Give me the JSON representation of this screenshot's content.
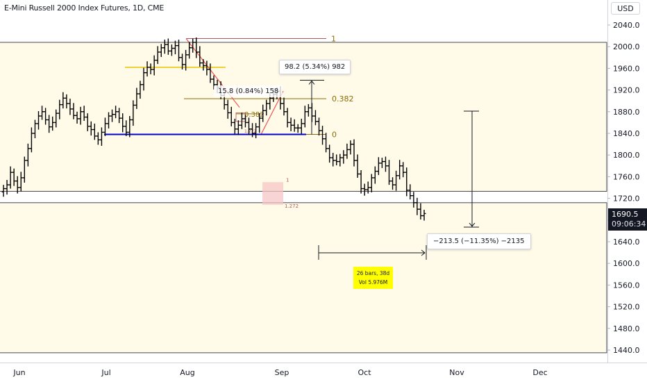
{
  "header": {
    "title": "E-Mini Russell 2000 Index Futures, 1D, CME",
    "currency": "USD"
  },
  "price_tag": {
    "price": "1690.5",
    "countdown": "09:06:34"
  },
  "annotations": {
    "rally_measure": "98.2 (5.34%) 982",
    "pullback_measure": "15.8 (0.84%) 158",
    "drop_measure": "−213.5 (−11.35%) −2135",
    "bars_info_line1": "26 bars, 38d",
    "bars_info_line2": "Vol 5.976M",
    "fib_upper_1": "1",
    "fib_upper_0382": "0.382",
    "fib_upper_0": "0",
    "fib_inner_0382": "0.382",
    "fib_inner_1272": "1.272",
    "fib_ext_1": "1",
    "fib_ext_1272": "1.272"
  },
  "colors": {
    "background": "#ffffff",
    "zone_fill": "#fffbe8",
    "zone_border": "#434651",
    "candles": "#000000",
    "support_line": "#0000cc",
    "fib_line": "#8a6d0a",
    "fib_yellow": "#e8c400",
    "fib_red_line": "#b2555b",
    "trend_line": "#ef5350",
    "ext_box": "#f7c5c5",
    "price_tag_bg": "#131722",
    "bars_box": "#ffff00"
  },
  "chart_data": {
    "type": "ohlc",
    "title": "E-Mini Russell 2000 Index Futures, 1D, CME",
    "y_axis": {
      "min": 1440,
      "max": 2040,
      "ticks": [
        2040.0,
        2000.0,
        1960.0,
        1920.0,
        1880.0,
        1840.0,
        1800.0,
        1760.0,
        1720.0,
        1680.0,
        1640.0,
        1600.0,
        1560.0,
        1520.0,
        1480.0,
        1440.0
      ],
      "tick_labels": [
        "2040.0",
        "2000.0",
        "1960.0",
        "1920.0",
        "1880.0",
        "1840.0",
        "1800.0",
        "1760.0",
        "1720.0",
        "1680.0",
        "1640.0",
        "1600.0",
        "1560.0",
        "1520.0",
        "1480.0",
        "1440.0"
      ],
      "position": "right"
    },
    "x_axis": {
      "labels": [
        "Jun",
        "Jul",
        "Aug",
        "Sep",
        "Oct",
        "Nov",
        "Dec"
      ]
    },
    "last_price": 1690.5,
    "zones": [
      {
        "name": "upper-zone",
        "top": 2008,
        "bottom": 1733
      },
      {
        "name": "lower-zone",
        "top": 1712,
        "bottom": 1435
      }
    ],
    "support_level": 1838,
    "fib_upper_level_1": 2015,
    "fib_upper_level_0382": 1904,
    "fib_upper_level_0": 1838,
    "rally_target": 1938,
    "drop_target_top": 1881,
    "drop_target_bottom": 1667,
    "closes": [
      1738,
      1745,
      1768,
      1752,
      1740,
      1758,
      1790,
      1812,
      1840,
      1858,
      1872,
      1880,
      1865,
      1852,
      1860,
      1877,
      1893,
      1905,
      1895,
      1885,
      1873,
      1867,
      1880,
      1870,
      1853,
      1847,
      1835,
      1828,
      1842,
      1858,
      1872,
      1875,
      1880,
      1868,
      1853,
      1842,
      1865,
      1892,
      1913,
      1930,
      1952,
      1962,
      1958,
      1975,
      1990,
      1998,
      2004,
      1992,
      1997,
      2002,
      1980,
      1967,
      1985,
      1998,
      2008,
      1990,
      1970,
      1965,
      1958,
      1940,
      1930,
      1925,
      1910,
      1893,
      1878,
      1860,
      1848,
      1855,
      1867,
      1860,
      1848,
      1840,
      1852,
      1868,
      1882,
      1895,
      1905,
      1912,
      1918,
      1895,
      1880,
      1860,
      1855,
      1850,
      1850,
      1858,
      1880,
      1887,
      1872,
      1862,
      1845,
      1830,
      1812,
      1795,
      1790,
      1788,
      1795,
      1800,
      1810,
      1820,
      1790,
      1765,
      1738,
      1736,
      1740,
      1758,
      1770,
      1785,
      1788,
      1780,
      1752,
      1745,
      1762,
      1780,
      1768,
      1735,
      1725,
      1712,
      1700,
      1688,
      1692
    ]
  }
}
